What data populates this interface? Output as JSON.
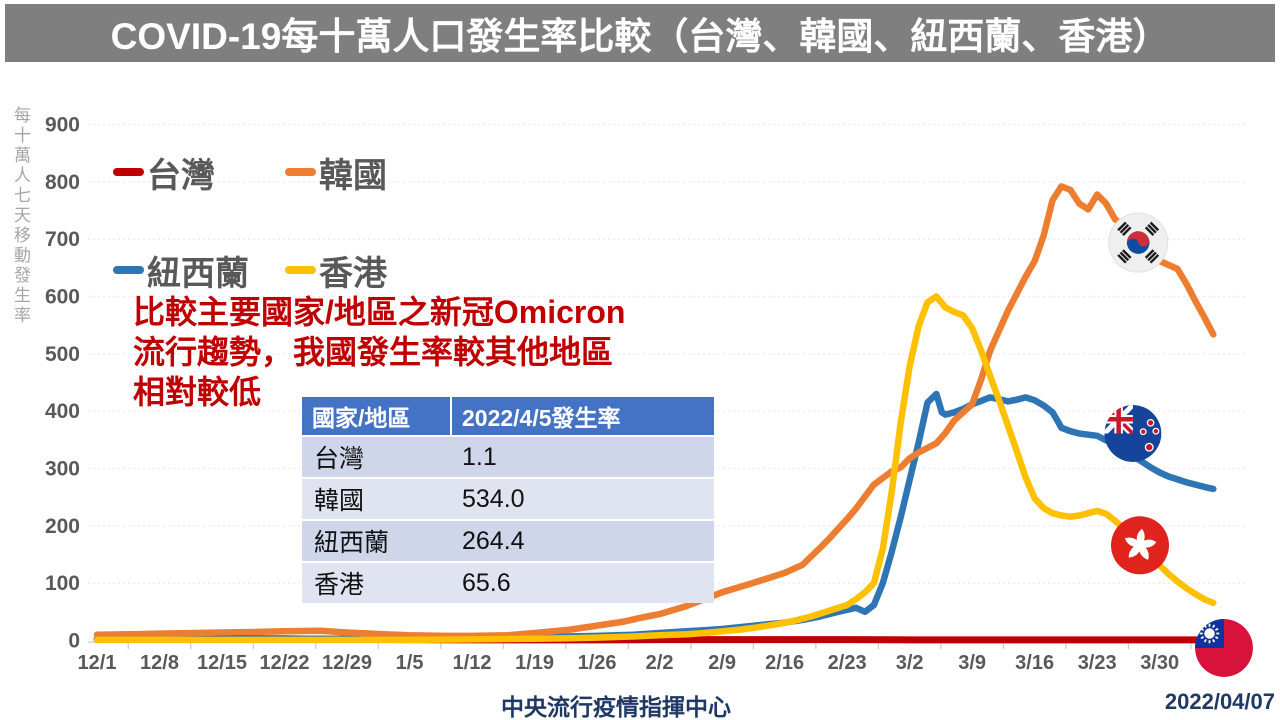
{
  "title": "COVID-19每十萬人口發生率比較（台灣、韓國、紐西蘭、香港）",
  "annotation": {
    "color": "#C00000",
    "lines": [
      "比較主要國家/地區之新冠Omicron",
      "流行趨勢，我國發生率較其他地區",
      "相對較低"
    ]
  },
  "table": {
    "headers": [
      "國家/地區",
      "2022/4/5發生率"
    ],
    "rows": [
      [
        "台灣",
        "1.1"
      ],
      [
        "韓國",
        "534.0"
      ],
      [
        "紐西蘭",
        "264.4"
      ],
      [
        "香港",
        "65.6"
      ]
    ],
    "header_bg": "#4472C4",
    "row_bgs": [
      "#D0D6EA",
      "#E0E4F1"
    ]
  },
  "footer": {
    "center": "中央流行疫情指揮中心",
    "date": "2022/04/07"
  },
  "chart_data": {
    "type": "line",
    "title": "COVID-19每十萬人口發生率比較（台灣、韓國、紐西蘭、香港）",
    "ylabel": "每十萬人七天移動發生率",
    "ylim": [
      0,
      900
    ],
    "y_step": 100,
    "grid": "horizontal-dashed",
    "legend_position": "upper-left 2x2",
    "x_unit": "day index from 12/1 (2021-12-01) to 4/5 (2022-04-05)",
    "x_ticks": [
      {
        "day": 0,
        "label": "12/1"
      },
      {
        "day": 7,
        "label": "12/8"
      },
      {
        "day": 14,
        "label": "12/15"
      },
      {
        "day": 21,
        "label": "12/22"
      },
      {
        "day": 28,
        "label": "12/29"
      },
      {
        "day": 35,
        "label": "1/5"
      },
      {
        "day": 42,
        "label": "1/12"
      },
      {
        "day": 49,
        "label": "1/19"
      },
      {
        "day": 56,
        "label": "1/26"
      },
      {
        "day": 63,
        "label": "2/2"
      },
      {
        "day": 70,
        "label": "2/9"
      },
      {
        "day": 77,
        "label": "2/16"
      },
      {
        "day": 84,
        "label": "2/23"
      },
      {
        "day": 91,
        "label": "3/2"
      },
      {
        "day": 98,
        "label": "3/9"
      },
      {
        "day": 105,
        "label": "3/16"
      },
      {
        "day": 112,
        "label": "3/23"
      },
      {
        "day": 119,
        "label": "3/30"
      }
    ],
    "draw_order": [
      0,
      2,
      1,
      3
    ],
    "series": [
      {
        "id": "taiwan",
        "name": "台灣",
        "color": "#C00000",
        "width": 7,
        "final_value": 1.1,
        "flag": "tw",
        "flag_at": {
          "day": 126.2,
          "value": -13
        },
        "points": [
          [
            0,
            2
          ],
          [
            7,
            2.5
          ],
          [
            14,
            3
          ],
          [
            21,
            3
          ],
          [
            28,
            2
          ],
          [
            35,
            1.5
          ],
          [
            42,
            1
          ],
          [
            49,
            1
          ],
          [
            56,
            1
          ],
          [
            63,
            1.5
          ],
          [
            70,
            1.5
          ],
          [
            77,
            1.5
          ],
          [
            84,
            1.5
          ],
          [
            91,
            1
          ],
          [
            98,
            1
          ],
          [
            105,
            1
          ],
          [
            112,
            1
          ],
          [
            119,
            1
          ],
          [
            125,
            1.1
          ]
        ]
      },
      {
        "id": "korea",
        "name": "韓國",
        "color": "#ED7D31",
        "width": 6.5,
        "final_value": 534.0,
        "flag": "kr",
        "flag_at": {
          "day": 116.6,
          "value": 694
        },
        "points": [
          [
            0,
            10
          ],
          [
            4,
            11
          ],
          [
            7,
            12
          ],
          [
            11,
            13
          ],
          [
            14,
            14
          ],
          [
            18,
            15
          ],
          [
            21,
            16
          ],
          [
            25,
            17
          ],
          [
            28,
            14
          ],
          [
            32,
            11
          ],
          [
            35,
            9
          ],
          [
            39,
            8
          ],
          [
            42,
            8
          ],
          [
            46,
            9
          ],
          [
            49,
            13
          ],
          [
            53,
            19
          ],
          [
            56,
            26
          ],
          [
            59,
            33
          ],
          [
            61,
            40
          ],
          [
            63,
            46
          ],
          [
            66,
            60
          ],
          [
            68,
            72
          ],
          [
            70,
            84
          ],
          [
            73,
            98
          ],
          [
            75,
            108
          ],
          [
            77,
            118
          ],
          [
            79,
            132
          ],
          [
            81,
            162
          ],
          [
            82,
            178
          ],
          [
            84,
            212
          ],
          [
            85,
            230
          ],
          [
            87,
            272
          ],
          [
            89,
            295
          ],
          [
            90,
            302
          ],
          [
            91,
            318
          ],
          [
            92,
            328
          ],
          [
            94,
            344
          ],
          [
            95,
            362
          ],
          [
            96,
            384
          ],
          [
            97,
            398
          ],
          [
            98,
            412
          ],
          [
            99,
            455
          ],
          [
            100,
            505
          ],
          [
            101,
            540
          ],
          [
            102,
            575
          ],
          [
            103,
            605
          ],
          [
            104,
            635
          ],
          [
            105,
            662
          ],
          [
            106,
            706
          ],
          [
            107,
            768
          ],
          [
            108,
            792
          ],
          [
            109,
            786
          ],
          [
            110,
            762
          ],
          [
            111,
            752
          ],
          [
            112,
            778
          ],
          [
            113,
            762
          ],
          [
            114,
            735
          ],
          [
            115,
            722
          ],
          [
            116,
            708
          ],
          [
            117,
            692
          ],
          [
            118,
            676
          ],
          [
            119,
            662
          ],
          [
            120,
            655
          ],
          [
            121,
            648
          ],
          [
            122,
            622
          ],
          [
            123,
            592
          ],
          [
            124,
            564
          ],
          [
            125,
            534
          ]
        ]
      },
      {
        "id": "nz",
        "name": "紐西蘭",
        "color": "#2E75B6",
        "width": 6.5,
        "final_value": 264.4,
        "flag": "nz",
        "flag_at": {
          "day": 116.0,
          "value": 361
        },
        "points": [
          [
            0,
            2
          ],
          [
            7,
            2
          ],
          [
            14,
            2
          ],
          [
            21,
            3
          ],
          [
            28,
            3
          ],
          [
            35,
            4
          ],
          [
            42,
            5
          ],
          [
            49,
            6
          ],
          [
            56,
            8
          ],
          [
            60,
            10
          ],
          [
            63,
            13
          ],
          [
            66,
            16
          ],
          [
            68,
            18
          ],
          [
            70,
            20
          ],
          [
            73,
            25
          ],
          [
            75,
            28
          ],
          [
            77,
            31
          ],
          [
            79,
            36
          ],
          [
            81,
            42
          ],
          [
            83,
            50
          ],
          [
            85,
            57
          ],
          [
            86,
            50
          ],
          [
            87,
            62
          ],
          [
            88,
            100
          ],
          [
            89,
            155
          ],
          [
            90,
            215
          ],
          [
            91,
            280
          ],
          [
            92,
            345
          ],
          [
            93,
            415
          ],
          [
            94,
            430
          ],
          [
            94.6,
            398
          ],
          [
            95,
            394
          ],
          [
            96,
            398
          ],
          [
            97,
            404
          ],
          [
            98,
            412
          ],
          [
            99,
            418
          ],
          [
            100,
            424
          ],
          [
            101,
            421
          ],
          [
            102,
            417
          ],
          [
            103,
            420
          ],
          [
            104,
            424
          ],
          [
            105,
            419
          ],
          [
            106,
            410
          ],
          [
            107,
            398
          ],
          [
            107.6,
            382
          ],
          [
            108,
            371
          ],
          [
            109,
            365
          ],
          [
            110,
            361
          ],
          [
            111,
            359
          ],
          [
            112,
            357
          ],
          [
            113,
            349
          ],
          [
            114,
            341
          ],
          [
            115,
            332
          ],
          [
            116,
            322
          ],
          [
            117,
            312
          ],
          [
            118,
            302
          ],
          [
            119,
            293
          ],
          [
            120,
            286
          ],
          [
            121,
            281
          ],
          [
            122,
            276
          ],
          [
            123,
            272
          ],
          [
            124,
            268
          ],
          [
            125,
            264.4
          ]
        ]
      },
      {
        "id": "hk",
        "name": "香港",
        "color": "#FFC000",
        "width": 6.5,
        "final_value": 65.6,
        "flag": "hk",
        "flag_at": {
          "day": 116.8,
          "value": 166
        },
        "points": [
          [
            0,
            1
          ],
          [
            7,
            1
          ],
          [
            14,
            1
          ],
          [
            21,
            1
          ],
          [
            28,
            1
          ],
          [
            35,
            1
          ],
          [
            42,
            2
          ],
          [
            49,
            3
          ],
          [
            53,
            4
          ],
          [
            56,
            5
          ],
          [
            60,
            7
          ],
          [
            63,
            9
          ],
          [
            66,
            11
          ],
          [
            68,
            13
          ],
          [
            70,
            16
          ],
          [
            72,
            19
          ],
          [
            74,
            23
          ],
          [
            76,
            28
          ],
          [
            78,
            34
          ],
          [
            80,
            42
          ],
          [
            82,
            52
          ],
          [
            84,
            62
          ],
          [
            85,
            72
          ],
          [
            86,
            84
          ],
          [
            87,
            100
          ],
          [
            88,
            160
          ],
          [
            89,
            260
          ],
          [
            90,
            380
          ],
          [
            91,
            478
          ],
          [
            92,
            548
          ],
          [
            93,
            590
          ],
          [
            94,
            600
          ],
          [
            95,
            581
          ],
          [
            96,
            573
          ],
          [
            97,
            567
          ],
          [
            98,
            545
          ],
          [
            99,
            506
          ],
          [
            100,
            462
          ],
          [
            101,
            420
          ],
          [
            102,
            375
          ],
          [
            103,
            330
          ],
          [
            104,
            284
          ],
          [
            105,
            248
          ],
          [
            106,
            231
          ],
          [
            107,
            222
          ],
          [
            108,
            218
          ],
          [
            109,
            216
          ],
          [
            110,
            218
          ],
          [
            111,
            222
          ],
          [
            112,
            226
          ],
          [
            113,
            221
          ],
          [
            114,
            209
          ],
          [
            115,
            195
          ],
          [
            116,
            179
          ],
          [
            117,
            162
          ],
          [
            118,
            147
          ],
          [
            119,
            131
          ],
          [
            120,
            116
          ],
          [
            121,
            103
          ],
          [
            122,
            91
          ],
          [
            123,
            81
          ],
          [
            124,
            72
          ],
          [
            125,
            65.6
          ]
        ]
      }
    ]
  }
}
